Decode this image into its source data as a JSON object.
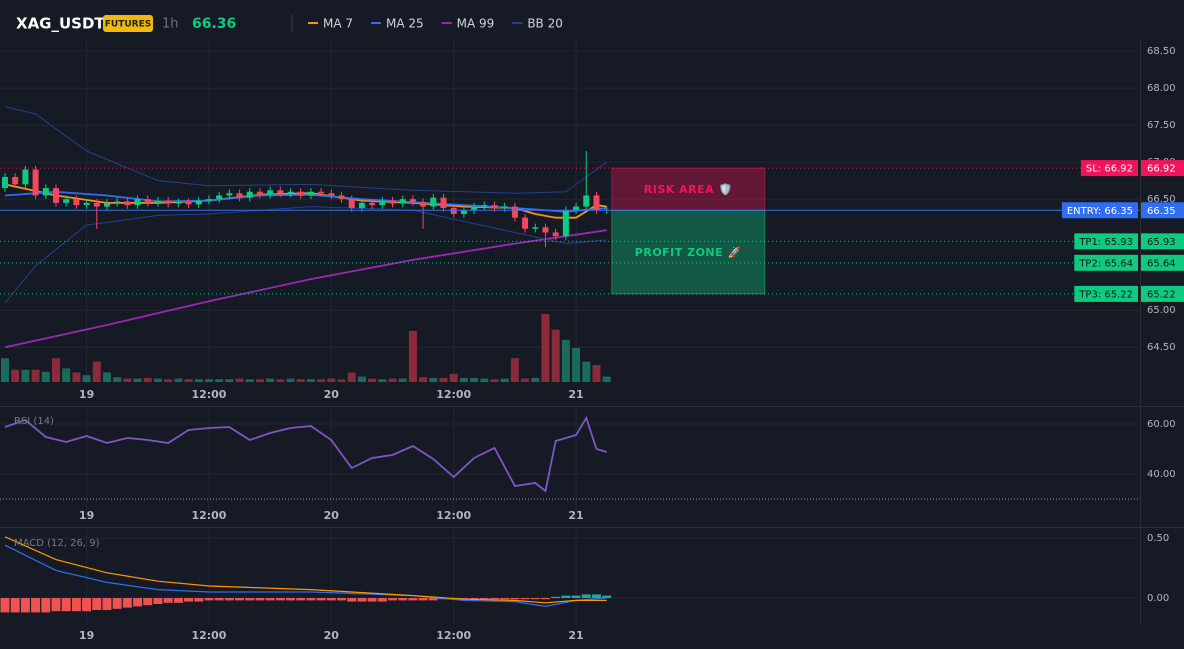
{
  "header": {
    "symbol": "XAG_USDT",
    "badge": "FUTURES",
    "interval": "1h",
    "last_price": "66.36"
  },
  "chart_data": [
    {
      "type": "candlestick",
      "up_color": "#0ecb81",
      "down_color": "#f6465d",
      "volume_up_color": "#1b6b5c",
      "volume_down_color": "#8a2a3a",
      "open": [
        66.65,
        66.8,
        66.7,
        66.9,
        66.55,
        66.65,
        66.45,
        66.5,
        66.42,
        66.45,
        66.4,
        66.45,
        66.47,
        66.42,
        66.5,
        66.45,
        66.48,
        66.44,
        66.46,
        66.43,
        66.48,
        66.5,
        66.55,
        66.58,
        66.52,
        66.6,
        66.56,
        66.62,
        66.58,
        66.6,
        66.55,
        66.6,
        66.58,
        66.55,
        66.5,
        66.38,
        66.45,
        66.42,
        66.48,
        66.44,
        66.5,
        66.46,
        66.4,
        66.52,
        66.38,
        66.3,
        66.35,
        66.4,
        66.42,
        66.38,
        66.4,
        66.25,
        66.1,
        66.12,
        66.05,
        66.0,
        66.35,
        66.4,
        66.55,
        66.35
      ],
      "high": [
        66.85,
        66.85,
        66.95,
        66.95,
        66.7,
        66.7,
        66.55,
        66.55,
        66.5,
        66.5,
        66.5,
        66.52,
        66.52,
        66.55,
        66.55,
        66.53,
        66.53,
        66.51,
        66.51,
        66.53,
        66.55,
        66.6,
        66.63,
        66.63,
        66.65,
        66.65,
        66.67,
        66.67,
        66.65,
        66.65,
        66.65,
        66.65,
        66.63,
        66.6,
        66.55,
        66.5,
        66.5,
        66.53,
        66.53,
        66.55,
        66.55,
        66.51,
        66.57,
        66.57,
        66.43,
        66.4,
        66.45,
        66.47,
        66.47,
        66.45,
        66.45,
        66.3,
        66.17,
        66.17,
        66.1,
        66.4,
        66.45,
        67.15,
        66.6,
        66.41
      ],
      "low": [
        66.6,
        66.65,
        66.65,
        66.5,
        66.5,
        66.4,
        66.4,
        66.37,
        66.37,
        66.1,
        66.35,
        66.4,
        66.37,
        66.37,
        66.4,
        66.4,
        66.39,
        66.39,
        66.38,
        66.38,
        66.43,
        66.45,
        66.5,
        66.47,
        66.47,
        66.51,
        66.51,
        66.53,
        66.53,
        66.5,
        66.5,
        66.53,
        66.5,
        66.45,
        66.33,
        66.33,
        66.37,
        66.37,
        66.39,
        66.39,
        66.41,
        66.1,
        66.35,
        66.33,
        66.25,
        66.25,
        66.3,
        66.35,
        66.33,
        66.33,
        66.2,
        66.05,
        66.05,
        65.85,
        65.95,
        65.95,
        66.3,
        66.35,
        66.3,
        66.3
      ],
      "close": [
        66.8,
        66.7,
        66.9,
        66.55,
        66.65,
        66.45,
        66.5,
        66.42,
        66.45,
        66.4,
        66.45,
        66.47,
        66.42,
        66.5,
        66.45,
        66.48,
        66.44,
        66.46,
        66.43,
        66.48,
        66.5,
        66.55,
        66.58,
        66.52,
        66.6,
        66.56,
        66.62,
        66.58,
        66.6,
        66.55,
        66.6,
        66.58,
        66.55,
        66.5,
        66.38,
        66.45,
        66.42,
        66.48,
        66.44,
        66.5,
        66.46,
        66.4,
        66.52,
        66.38,
        66.3,
        66.35,
        66.4,
        66.42,
        66.38,
        66.4,
        66.25,
        66.1,
        66.12,
        66.05,
        66.0,
        66.35,
        66.4,
        66.55,
        66.35,
        66.36
      ],
      "volume": [
        35,
        18,
        18,
        18,
        15,
        35,
        20,
        14,
        10,
        30,
        14,
        7,
        5,
        5,
        6,
        5,
        4,
        5,
        4,
        4,
        4,
        4,
        4,
        5,
        4,
        4,
        5,
        4,
        5,
        4,
        4,
        4,
        5,
        4,
        14,
        8,
        5,
        4,
        5,
        5,
        75,
        7,
        6,
        6,
        12,
        6,
        6,
        5,
        4,
        5,
        35,
        5,
        6,
        100,
        77,
        62,
        50,
        30,
        25,
        8
      ],
      "series": [
        {
          "name": "MA 7",
          "color": "#f7931a",
          "x": [
            0,
            5,
            10,
            15,
            20,
            25,
            30,
            35,
            40,
            45,
            50,
            52,
            54,
            56,
            58,
            59
          ],
          "values": [
            66.7,
            66.55,
            66.45,
            66.45,
            66.48,
            66.56,
            66.58,
            66.48,
            66.45,
            66.4,
            66.38,
            66.3,
            66.25,
            66.25,
            66.42,
            66.4
          ]
        },
        {
          "name": "MA 25",
          "color": "#2f6fef",
          "x": [
            0,
            5,
            10,
            15,
            20,
            25,
            30,
            35,
            40,
            45,
            50,
            55,
            59
          ],
          "values": [
            66.55,
            66.6,
            66.55,
            66.47,
            66.48,
            66.55,
            66.56,
            66.5,
            66.46,
            66.42,
            66.38,
            66.33,
            66.38
          ]
        },
        {
          "name": "MA 99",
          "color": "#9c27b0",
          "x": [
            0,
            10,
            20,
            30,
            40,
            50,
            59
          ],
          "values": [
            64.5,
            64.8,
            65.12,
            65.42,
            65.68,
            65.9,
            66.08
          ]
        },
        {
          "name": "BB 20",
          "color": "#24408e",
          "x": [
            0,
            3,
            8,
            15,
            20,
            30,
            40,
            50,
            55,
            59
          ],
          "upper": [
            67.75,
            67.65,
            67.15,
            66.75,
            66.68,
            66.7,
            66.62,
            66.58,
            66.6,
            67.0
          ],
          "lower": [
            65.1,
            65.6,
            66.15,
            66.28,
            66.3,
            66.4,
            66.35,
            66.05,
            65.9,
            65.95
          ]
        }
      ],
      "levels": [
        {
          "label": "SL: 66.92",
          "value": 66.92,
          "color": "#f0145a",
          "style": "dotted"
        },
        {
          "label": "ENTRY: 66.35",
          "value": 66.35,
          "color": "#2f6fef",
          "style": "solid"
        },
        {
          "label": "TP1: 65.93",
          "value": 65.93,
          "color": "#0ecb81",
          "style": "dotted"
        },
        {
          "label": "TP2: 65.64",
          "value": 65.64,
          "color": "#0ecb81",
          "style": "dotted"
        },
        {
          "label": "TP3: 65.22",
          "value": 65.22,
          "color": "#0ecb81",
          "style": "dotted"
        }
      ],
      "zones": [
        {
          "label": "RISK AREA 🛡️",
          "from": 66.92,
          "to": 66.35,
          "x": [
            59.5,
            74.5
          ],
          "color": "#f0145a"
        },
        {
          "label": "PROFIT ZONE 🚀",
          "from": 66.35,
          "to": 65.22,
          "x": [
            59.5,
            74.5
          ],
          "color": "#0ecb81"
        }
      ],
      "xlim": [
        -0.49,
        111.3
      ],
      "xticks": [
        {
          "value": 8,
          "label": "19"
        },
        {
          "value": 20,
          "label": "12:00"
        },
        {
          "value": 32,
          "label": "20"
        },
        {
          "value": 44,
          "label": "12:00"
        },
        {
          "value": 56,
          "label": "21"
        }
      ],
      "ylim": [
        64.03,
        68.65
      ],
      "yticks": [
        {
          "value": 64.5,
          "label": "64.50"
        },
        {
          "value": 65,
          "label": "65.00"
        },
        {
          "value": 66.5,
          "label": "66.50"
        },
        {
          "value": 67,
          "label": "67.00"
        },
        {
          "value": 67.5,
          "label": "67.50"
        },
        {
          "value": 68,
          "label": "68.00"
        },
        {
          "value": 68.5,
          "label": "68.50"
        }
      ],
      "grid": true
    },
    {
      "type": "line",
      "title": "RSI (14)",
      "series": [
        {
          "color": "#7e57c2",
          "x": [
            0,
            2,
            4,
            6,
            8,
            10,
            12,
            14,
            16,
            18,
            20,
            22,
            24,
            26,
            28,
            30,
            32,
            34,
            36,
            38,
            40,
            42,
            44,
            46,
            48,
            50,
            52,
            53,
            54,
            56,
            57,
            58,
            59
          ],
          "values": [
            58.8,
            61.6,
            54.8,
            52.8,
            55.2,
            52.4,
            54.4,
            53.6,
            52.4,
            57.6,
            58.4,
            58.8,
            53.6,
            56.4,
            58.4,
            59.2,
            53.6,
            42.4,
            46.4,
            47.6,
            51.2,
            46,
            38.8,
            46.4,
            50.4,
            35.2,
            36.4,
            33.2,
            53.2,
            55.6,
            62.4,
            50,
            48.8
          ]
        }
      ],
      "hlines": [
        30
      ],
      "xlim": [
        -0.49,
        111.3
      ],
      "xticks": [
        {
          "value": 8,
          "label": "19"
        },
        {
          "value": 20,
          "label": "12:00"
        },
        {
          "value": 32,
          "label": "20"
        },
        {
          "value": 44,
          "label": "12:00"
        },
        {
          "value": 56,
          "label": "21"
        }
      ],
      "ylim": [
        21.6,
        66.4
      ],
      "yticks": [
        {
          "value": 40,
          "label": "40.00"
        },
        {
          "value": 60,
          "label": "60.00"
        }
      ],
      "grid": true
    },
    {
      "type": "macd",
      "title": "MACD (12, 26, 9)",
      "series": [
        {
          "color": "#2f6fef",
          "x": [
            0,
            5,
            10,
            15,
            20,
            30,
            40,
            45,
            50,
            53,
            56,
            59
          ],
          "values": [
            0.44,
            0.23,
            0.13,
            0.07,
            0.05,
            0.05,
            0.02,
            -0.02,
            -0.03,
            -0.07,
            -0.02,
            0
          ]
        },
        {
          "color": "#ff9800",
          "x": [
            0,
            5,
            10,
            15,
            20,
            30,
            40,
            45,
            50,
            53,
            56,
            59
          ],
          "values": [
            0.51,
            0.32,
            0.21,
            0.14,
            0.1,
            0.07,
            0.02,
            -0.01,
            -0.02,
            -0.04,
            -0.02,
            -0.02
          ]
        }
      ],
      "histogram": {
        "pos_color": "#26a69a",
        "neg_color": "#ef5350",
        "values": [
          -0.12,
          -0.12,
          -0.12,
          -0.12,
          -0.12,
          -0.11,
          -0.11,
          -0.11,
          -0.11,
          -0.1,
          -0.1,
          -0.09,
          -0.08,
          -0.07,
          -0.06,
          -0.05,
          -0.04,
          -0.04,
          -0.03,
          -0.03,
          -0.02,
          -0.02,
          -0.02,
          -0.02,
          -0.02,
          -0.02,
          -0.02,
          -0.02,
          -0.02,
          -0.02,
          -0.02,
          -0.02,
          -0.02,
          -0.02,
          -0.03,
          -0.03,
          -0.03,
          -0.03,
          -0.02,
          -0.02,
          -0.02,
          -0.02,
          -0.02,
          -0.01,
          -0.01,
          -0.01,
          -0.01,
          -0.01,
          -0.01,
          -0.01,
          -0.01,
          -0.01,
          -0.01,
          -0.01,
          0.01,
          0.02,
          0.02,
          0.03,
          0.03,
          0.02
        ]
      },
      "xlim": [
        -0.49,
        111.3
      ],
      "xticks": [
        {
          "value": 8,
          "label": "19"
        },
        {
          "value": 20,
          "label": "12:00"
        },
        {
          "value": 32,
          "label": "20"
        },
        {
          "value": 44,
          "label": "12:00"
        },
        {
          "value": 56,
          "label": "21"
        }
      ],
      "ylim": [
        -0.225,
        0.567
      ],
      "yticks": [
        {
          "value": 0,
          "label": "0.00"
        },
        {
          "value": 0.5,
          "label": "0.50"
        }
      ],
      "grid": true
    }
  ]
}
